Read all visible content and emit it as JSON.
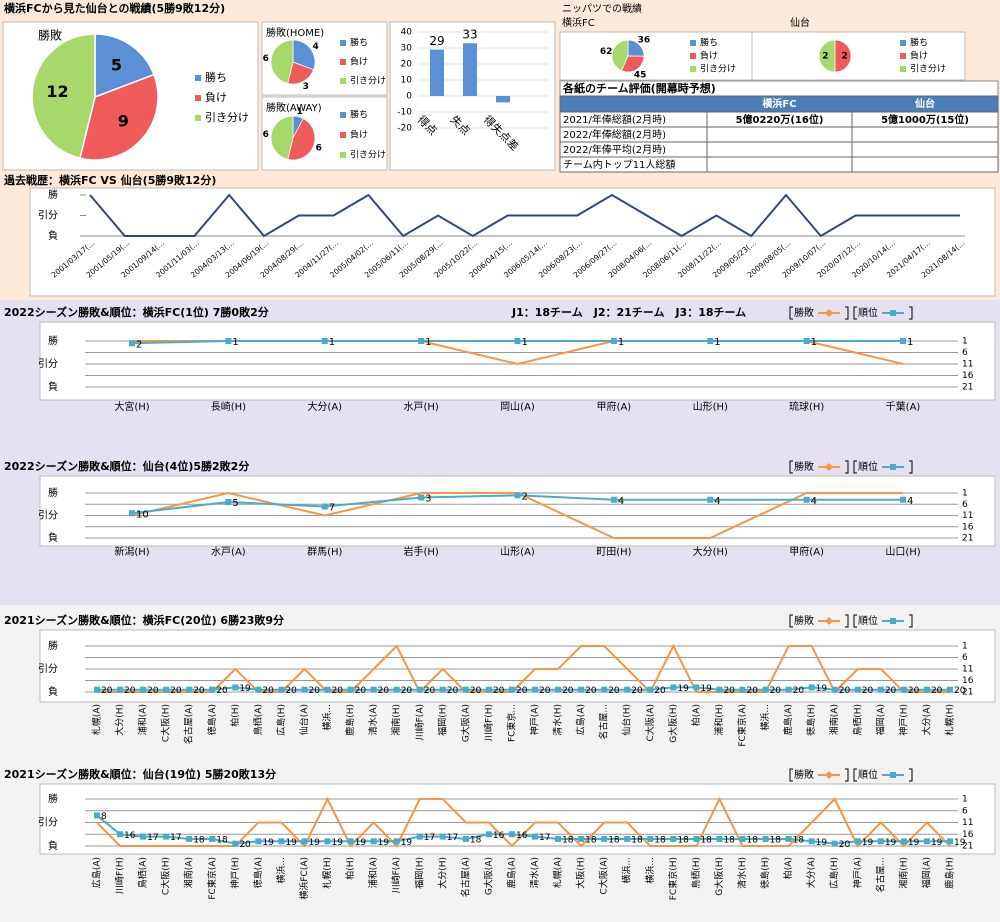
{
  "panels": {
    "head_to_head": "横浜FCから見た仙台との戦績(5勝9敗12分)",
    "nippatsu": "ニッパツでの戦績"
  },
  "table": {
    "title": "各紙のチーム評価(開幕時予想)",
    "columns": [
      "横浜FC",
      "仙台"
    ],
    "rows": [
      {
        "label": "2021/年俸総額(2月時)",
        "values": [
          "5億0220万(16位)",
          "5億1000万(15位)"
        ]
      },
      {
        "label": "2022/年俸総額(2月時)"
      },
      {
        "label": "2022/年俸平均(2月時)"
      },
      {
        "label": "チーム内トップ11人総額"
      }
    ]
  },
  "chart_data": [
    {
      "type": "pie",
      "title": "勝敗",
      "categories": [
        "勝ち",
        "負け",
        "引き分け"
      ],
      "values": [
        5,
        9,
        12
      ],
      "colors": [
        "#5b8fd6",
        "#ef5b5b",
        "#a7d86b"
      ]
    },
    {
      "type": "pie",
      "title": "勝敗(HOME)",
      "categories": [
        "勝ち",
        "負け",
        "引き分け"
      ],
      "values": [
        4,
        3,
        6
      ],
      "colors": [
        "#5b8fd6",
        "#ef5b5b",
        "#a7d86b"
      ]
    },
    {
      "type": "pie",
      "title": "勝敗(AWAY)",
      "categories": [
        "勝ち",
        "負け",
        "引き分け"
      ],
      "values": [
        1,
        6,
        6
      ],
      "colors": [
        "#5b8fd6",
        "#ef5b5b",
        "#a7d86b"
      ]
    },
    {
      "type": "bar",
      "categories": [
        "得点",
        "失点",
        "得失点差"
      ],
      "values": [
        29,
        33,
        -4
      ],
      "color": "#5b8fd6",
      "ylim": [
        -20,
        40
      ],
      "yticks": [
        -20,
        -10,
        0,
        10,
        20,
        30,
        40
      ]
    },
    {
      "type": "pie",
      "title": "横浜FC",
      "categories": [
        "勝ち",
        "負け",
        "引き分け"
      ],
      "values": [
        36,
        45,
        62
      ],
      "colors": [
        "#5b8fd6",
        "#ef5b5b",
        "#a7d86b"
      ]
    },
    {
      "type": "pie",
      "title": "仙台",
      "categories": [
        "勝ち",
        "負け",
        "引き分け"
      ],
      "values": [
        0,
        2,
        2
      ],
      "colors": [
        "#5b8fd6",
        "#ef5b5b",
        "#a7d86b"
      ]
    },
    {
      "type": "line",
      "title": "過去戦歴：横浜FC VS 仙台(5勝9敗12分)",
      "color": "#2e4a74",
      "categories": [
        "2001/03/17(…",
        "2001/05/19(…",
        "2001/09/14(…",
        "2001/11/03(…",
        "2004/03/13(…",
        "2004/06/19(…",
        "2004/08/29(…",
        "2004/11/27(…",
        "2005/04/02(…",
        "2005/06/11(…",
        "2005/08/29(…",
        "2005/10/22(…",
        "2006/04/15(…",
        "2006/05/14(…",
        "2006/08/23(…",
        "2006/09/27(…",
        "2008/04/06(…",
        "2008/06/11(…",
        "2008/11/22(…",
        "2009/05/23(…",
        "2009/08/05(…",
        "2009/10/07(…",
        "2020/07/12(…",
        "2020/10/14(…",
        "2021/04/17(…",
        "2021/08/14(…"
      ],
      "values": [
        1,
        -1,
        -1,
        -1,
        1,
        -1,
        0,
        0,
        1,
        -1,
        0,
        -1,
        0,
        0,
        0,
        1,
        0,
        -1,
        0,
        -1,
        1,
        -1,
        0,
        0,
        0,
        0
      ],
      "ylim": [
        -1,
        1
      ],
      "yticks": [
        {
          "value": 1,
          "label": "勝"
        },
        {
          "value": 0,
          "label": "引分"
        },
        {
          "value": -1,
          "label": "負"
        }
      ]
    },
    {
      "type": "combo",
      "title": "2022シーズン勝敗&順位：横浜FC(1位) 7勝0敗2分",
      "subtitle": "J1：18チーム　J2：21チーム　J3：18チーム",
      "categories": [
        "大宮(H)",
        "長崎(H)",
        "大分(A)",
        "水戸(H)",
        "岡山(A)",
        "甲府(A)",
        "山形(H)",
        "琉球(H)",
        "千葉(A)"
      ],
      "ylim": [
        -1,
        1
      ],
      "yticks": [
        {
          "value": 1,
          "label": "勝"
        },
        {
          "value": 0,
          "label": "引分"
        },
        {
          "value": -1,
          "label": "負"
        }
      ],
      "y2lim": [
        21,
        1
      ],
      "y2ticks": [
        1,
        6,
        11,
        16,
        21
      ],
      "series": [
        {
          "name": "勝敗",
          "color": "#f79646",
          "values": [
            1,
            1,
            1,
            1,
            0,
            1,
            1,
            1,
            0
          ]
        },
        {
          "name": "順位",
          "color": "#4bacc6",
          "axis": "y2",
          "values": [
            2,
            1,
            1,
            1,
            1,
            1,
            1,
            1,
            1
          ]
        }
      ]
    },
    {
      "type": "combo",
      "title": "2022シーズン勝敗&順位：仙台(4位)5勝2敗2分",
      "categories": [
        "新潟(H)",
        "水戸(A)",
        "群馬(H)",
        "岩手(H)",
        "山形(A)",
        "町田(H)",
        "大分(H)",
        "甲府(A)",
        "山口(H)"
      ],
      "ylim": [
        -1,
        1
      ],
      "yticks": [
        {
          "value": 1,
          "label": "勝"
        },
        {
          "value": 0,
          "label": "引分"
        },
        {
          "value": -1,
          "label": "負"
        }
      ],
      "y2lim": [
        21,
        1
      ],
      "y2ticks": [
        1,
        6,
        11,
        16,
        21
      ],
      "series": [
        {
          "name": "勝敗",
          "color": "#f79646",
          "values": [
            0,
            1,
            0,
            1,
            1,
            -1,
            -1,
            1,
            1
          ]
        },
        {
          "name": "順位",
          "color": "#4bacc6",
          "axis": "y2",
          "values": [
            10,
            5,
            7,
            3,
            2,
            4,
            4,
            4,
            4
          ]
        }
      ]
    },
    {
      "type": "combo",
      "title": "2021シーズン勝敗&順位：横浜FC(20位) 6勝23敗9分",
      "categories": [
        "札幌(A)",
        "大分(H)",
        "浦和(A)",
        "C大阪(H)",
        "名古屋(A)",
        "徳島(A)",
        "柏(H)",
        "鳥栖(A)",
        "広島(H)",
        "仙台(A)",
        "横浜...",
        "鹿島(H)",
        "清水(A)",
        "湘南(H)",
        "川崎F(A)",
        "福岡(H)",
        "G大阪(A)",
        "川崎F(H)",
        "FC東京...",
        "神戸(A)",
        "清水(H)",
        "広島(A)",
        "名古屋...",
        "仙台(H)",
        "C大阪(A)",
        "G大阪(H)",
        "柏(A)",
        "浦和(H)",
        "FC東京(A)",
        "横浜...",
        "鹿島(A)",
        "徳島(H)",
        "湘南(A)",
        "鳥栖(H)",
        "福岡(A)",
        "神戸(H)",
        "大分(A)",
        "札幌(H)"
      ],
      "ylim": [
        -1,
        1
      ],
      "yticks": [
        {
          "value": 1,
          "label": "勝"
        },
        {
          "value": 0,
          "label": "引分"
        },
        {
          "value": -1,
          "label": "負"
        }
      ],
      "y2lim": [
        21,
        1
      ],
      "y2ticks": [
        1,
        6,
        11,
        16,
        21
      ],
      "series": [
        {
          "name": "勝敗",
          "color": "#f79646",
          "values": [
            -1,
            -1,
            -1,
            -1,
            -1,
            -1,
            0,
            -1,
            -1,
            0,
            -1,
            -1,
            0,
            1,
            -1,
            0,
            -1,
            -1,
            -1,
            0,
            0,
            1,
            1,
            0,
            -1,
            1,
            -1,
            -1,
            -1,
            -1,
            1,
            1,
            -1,
            0,
            0,
            -1,
            -1,
            -1
          ]
        },
        {
          "name": "順位",
          "color": "#4bacc6",
          "axis": "y2",
          "values": [
            20,
            20,
            20,
            20,
            20,
            20,
            19,
            20,
            20,
            20,
            20,
            20,
            20,
            20,
            20,
            20,
            20,
            20,
            20,
            20,
            20,
            20,
            20,
            20,
            20,
            19,
            19,
            20,
            20,
            20,
            20,
            19,
            20,
            20,
            20,
            20,
            20,
            20
          ]
        }
      ]
    },
    {
      "type": "combo",
      "title": "2021シーズン勝敗&順位：仙台(19位) 5勝20敗13分",
      "categories": [
        "広島(A)",
        "川崎F(H)",
        "鳥栖(A)",
        "C大阪(H)",
        "湘南(A)",
        "FC東京(A)",
        "神戸(H)",
        "徳島(A)",
        "横浜...",
        "横浜FC(A)",
        "札幌(H)",
        "柏(H)",
        "浦和(A)",
        "川崎F(A)",
        "福岡(H)",
        "大分(H)",
        "名古屋(A)",
        "G大阪(A)",
        "鹿島(A)",
        "清水(A)",
        "札幌(A)",
        "大阪(H)",
        "C大阪(A)",
        "横浜...",
        "横浜...",
        "FC東京(H)",
        "鳥栖(H)",
        "G大阪(H)",
        "清水(H)",
        "徳島(H)",
        "柏(A)",
        "大分(A)",
        "広島(H)",
        "神戸(A)",
        "名古屋...",
        "湘南(H)",
        "福岡(A)",
        "鹿島(H)"
      ],
      "ylim": [
        -1,
        1
      ],
      "yticks": [
        {
          "value": 1,
          "label": "勝"
        },
        {
          "value": 0,
          "label": "引分"
        },
        {
          "value": -1,
          "label": "負"
        }
      ],
      "y2lim": [
        21,
        1
      ],
      "y2ticks": [
        1,
        6,
        11,
        16,
        21
      ],
      "series": [
        {
          "name": "勝敗",
          "color": "#f79646",
          "values": [
            0,
            -1,
            -1,
            -1,
            -1,
            -1,
            -1,
            0,
            0,
            -1,
            1,
            -1,
            0,
            -1,
            1,
            1,
            0,
            0,
            -1,
            0,
            0,
            -1,
            0,
            0,
            -1,
            -1,
            -1,
            1,
            -1,
            -1,
            -1,
            0,
            1,
            -1,
            0,
            -1,
            0,
            -1
          ]
        },
        {
          "name": "順位",
          "color": "#4bacc6",
          "axis": "y2",
          "values": [
            8,
            16,
            17,
            17,
            18,
            18,
            20,
            19,
            19,
            19,
            19,
            19,
            19,
            19,
            17,
            17,
            18,
            16,
            16,
            17,
            18,
            18,
            18,
            18,
            18,
            18,
            18,
            18,
            18,
            18,
            18,
            19,
            20,
            19,
            19,
            19,
            19,
            19
          ]
        }
      ]
    }
  ]
}
